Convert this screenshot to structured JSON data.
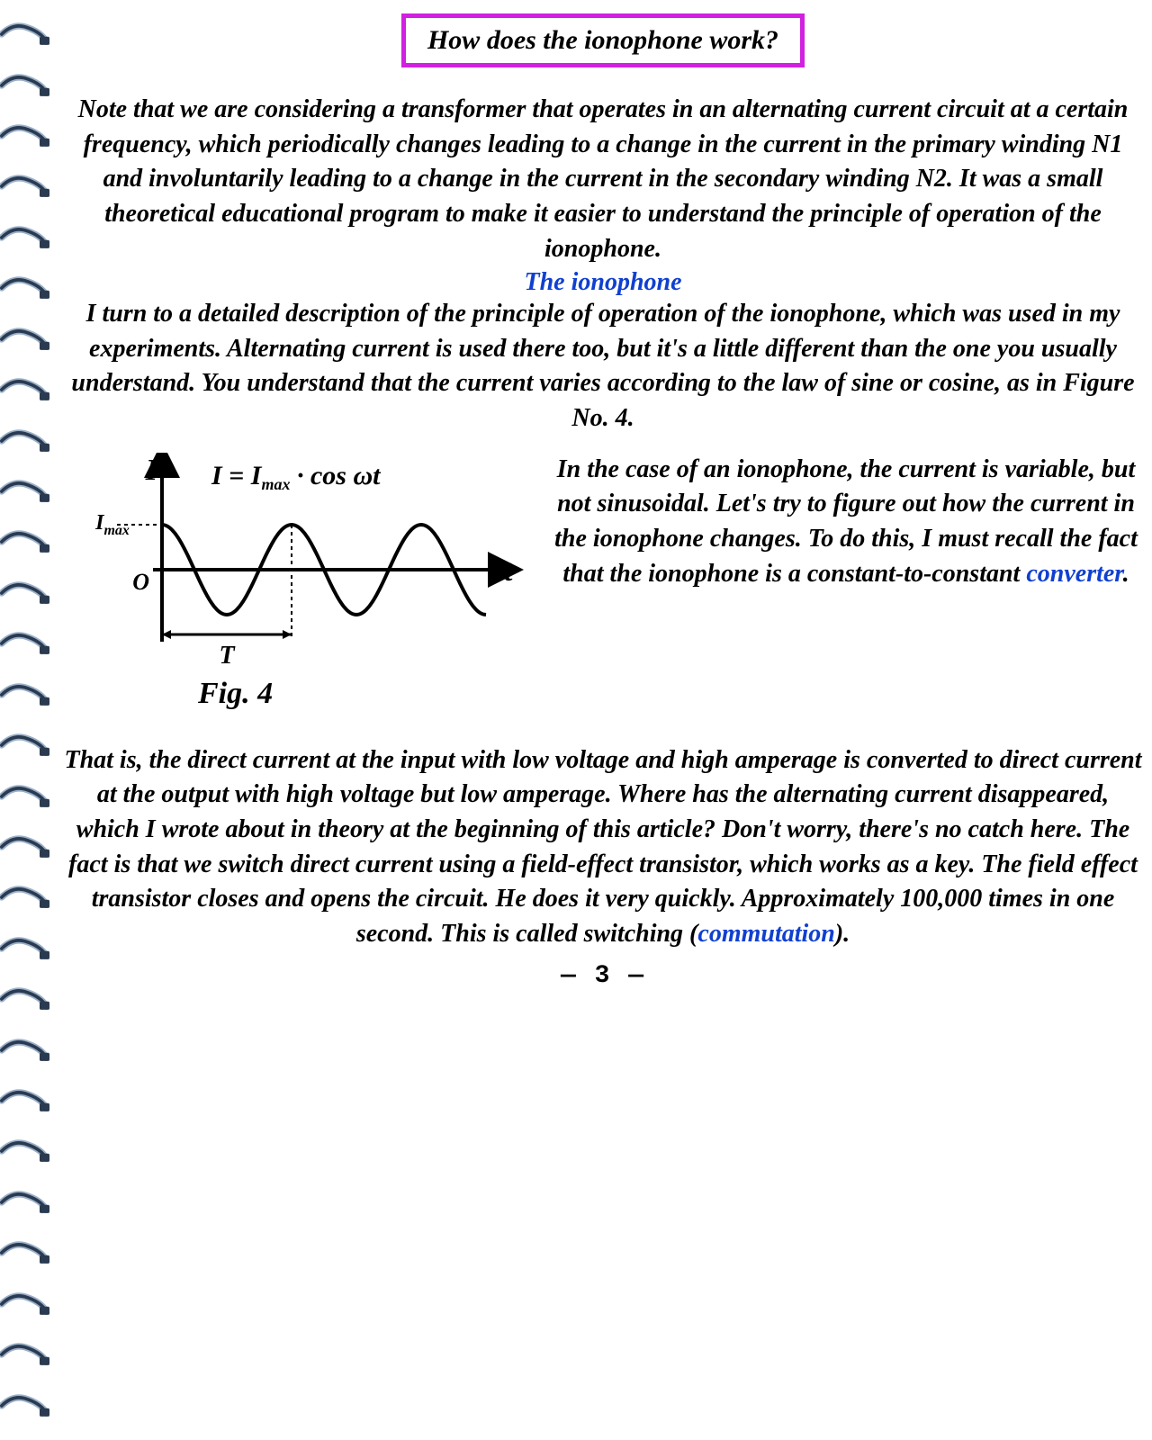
{
  "accentColor": "#d020e0",
  "title": "How does the ionophone work?",
  "para1": "Note that we are considering a transformer that operates in an alternating current circuit at a certain frequency, which periodically changes leading to a change in the current in the primary winding N1 and involuntarily leading to a change in the current in the secondary winding N2. It was a small theoretical educational program to make it easier to understand the principle of operation of the ionophone.",
  "subhead": "The ionophone",
  "para2": "I turn to a detailed description of the principle of operation of the ionophone, which was used in my experiments. Alternating current is used there too, but it's a little different than the one you usually understand. You understand that the current varies according to the law of sine or cosine, as in Figure No. 4.",
  "para3_a": "In the case of an ionophone, the current is variable, but not sinusoidal. Let's try to figure out how the current in the ionophone changes. To do this, I must recall the fact that the ionophone is a constant-to-constant ",
  "para3_link": "converter",
  "para3_b": ".",
  "para4_a": "That is, the direct current at the input with low voltage and high amperage is converted to direct current at the output with high voltage but low amperage. Where has the alternating current disappeared, which I wrote about in theory at the beginning of this article? Don't worry, there's no catch here. The fact is that we switch direct current using a field-effect transistor, which works as a key. The field effect transistor closes and opens the circuit. He does it very quickly. Approximately 100,000 times in one second. This is called switching (",
  "para4_link": "commutation",
  "para4_b": ").",
  "figure": {
    "equation": "I = I_max · cos ωt",
    "yLabel": "I",
    "yMaxLabel": "I_max",
    "origin": "O",
    "xLabel": "t",
    "periodLabel": "T",
    "caption": "Fig. 4",
    "strokeColor": "#000000",
    "strokeWidth": 4,
    "amplitude": 50,
    "periods": 2.5
  },
  "pageNumber": "— 3 —",
  "spiral": {
    "count": 28,
    "darkColor": "#2a3a50",
    "lightColor": "#9ab0c8"
  }
}
